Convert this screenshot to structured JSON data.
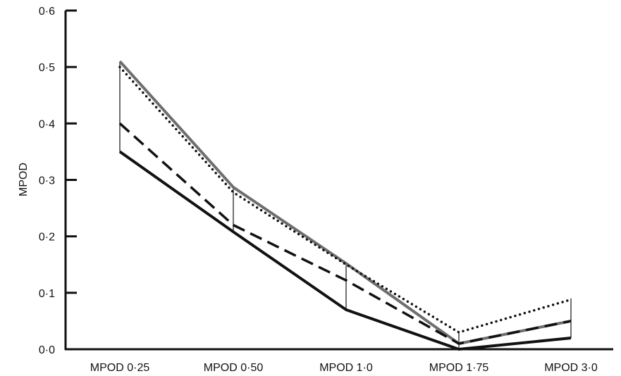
{
  "chart_data": {
    "type": "line",
    "title": "",
    "xlabel": "",
    "ylabel": "MPOD",
    "ylim": [
      0,
      0.6
    ],
    "y_ticks": [
      "0·0",
      "0·1",
      "0·2",
      "0·3",
      "0·4",
      "0·5",
      "0·6"
    ],
    "y_tick_values": [
      0,
      0.1,
      0.2,
      0.3,
      0.4,
      0.5,
      0.6
    ],
    "categories": [
      "MPOD 0·25",
      "MPOD 0·50",
      "MPOD 1·0",
      "MPOD 1·75",
      "MPOD 3·0"
    ],
    "grid": false,
    "legend": "none",
    "series": [
      {
        "style": "solid-grey",
        "color": "#6e6e6e",
        "values": [
          0.51,
          0.287,
          0.152,
          0.01,
          0.05
        ]
      },
      {
        "style": "dotted",
        "color": "#111111",
        "values": [
          0.5,
          0.278,
          0.15,
          0.03,
          0.088
        ]
      },
      {
        "style": "dashed",
        "color": "#111111",
        "values": [
          0.4,
          0.22,
          0.122,
          0.01,
          0.05
        ]
      },
      {
        "style": "solid-black",
        "color": "#111111",
        "values": [
          0.35,
          0.208,
          0.07,
          0.0,
          0.02
        ]
      }
    ],
    "range_bars": [
      {
        "low": 0.35,
        "high": 0.51
      },
      {
        "low": 0.208,
        "high": 0.287
      },
      {
        "low": 0.07,
        "high": 0.152
      },
      {
        "low": 0.0,
        "high": 0.03
      },
      {
        "low": 0.02,
        "high": 0.09
      }
    ]
  }
}
